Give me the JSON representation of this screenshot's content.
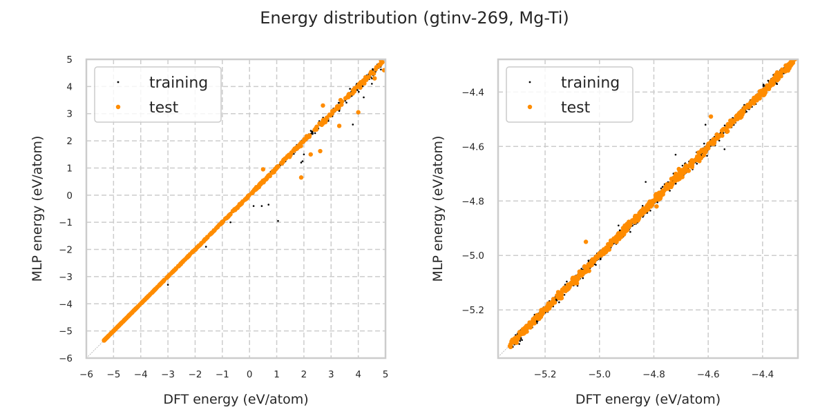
{
  "figure": {
    "title": "Energy distribution (gtinv-269, Mg-Ti)"
  },
  "colors": {
    "training": "#000000",
    "test": "#ff8c00",
    "grid": "#cccccc",
    "spine": "#cccccc",
    "diagonal": "#aaaaaa"
  },
  "chart_data": [
    {
      "type": "scatter",
      "title": "",
      "xlabel": "DFT energy (eV/atom)",
      "ylabel": "MLP energy (eV/atom)",
      "xlim": [
        -6,
        5
      ],
      "ylim": [
        -6,
        5
      ],
      "xticks": [
        -6,
        -5,
        -4,
        -3,
        -2,
        -1,
        0,
        1,
        2,
        3,
        4,
        5
      ],
      "yticks": [
        -6,
        -5,
        -4,
        -3,
        -2,
        -1,
        0,
        1,
        2,
        3,
        4,
        5
      ],
      "xtick_labels": [
        "−6",
        "−5",
        "−4",
        "−3",
        "−2",
        "−1",
        "0",
        "1",
        "2",
        "3",
        "4",
        "5"
      ],
      "ytick_labels": [
        "−6",
        "−5",
        "−4",
        "−3",
        "−2",
        "−1",
        "0",
        "1",
        "2",
        "3",
        "4",
        "5"
      ],
      "grid": true,
      "legend": {
        "position": "top-left",
        "entries": [
          "training",
          "test"
        ]
      },
      "diagonal": true,
      "series": [
        {
          "name": "training",
          "distribution": {
            "range": [
              -5.35,
              4.9
            ],
            "scatter_sd": 0.08,
            "count": 900
          },
          "outliers": [
            [
              1.05,
              -0.95
            ],
            [
              0.45,
              -0.4
            ],
            [
              0.15,
              -0.4
            ],
            [
              0.7,
              -0.35
            ],
            [
              1.9,
              1.2
            ],
            [
              2.0,
              1.5
            ],
            [
              1.95,
              1.25
            ],
            [
              3.3,
              3.1
            ],
            [
              4.2,
              3.6
            ],
            [
              4.5,
              4.1
            ],
            [
              3.8,
              2.6
            ],
            [
              -1.6,
              -1.9
            ],
            [
              -3.0,
              -3.3
            ],
            [
              -0.7,
              -1.0
            ]
          ]
        },
        {
          "name": "test",
          "distribution": {
            "range": [
              -5.35,
              4.9
            ],
            "scatter_sd": 0.05,
            "count": 500
          },
          "outliers": [
            [
              1.9,
              0.65
            ],
            [
              2.25,
              1.5
            ],
            [
              2.6,
              1.62
            ],
            [
              2.7,
              3.3
            ],
            [
              3.3,
              2.55
            ],
            [
              4.0,
              3.05
            ],
            [
              4.0,
              4.0
            ],
            [
              4.6,
              4.3
            ],
            [
              4.95,
              4.6
            ],
            [
              0.5,
              0.95
            ],
            [
              3.35,
              3.5
            ]
          ]
        }
      ]
    },
    {
      "type": "scatter",
      "title": "",
      "xlabel": "DFT energy (eV/atom)",
      "ylabel": "MLP energy (eV/atom)",
      "xlim": [
        -5.373,
        -4.27
      ],
      "ylim": [
        -5.377,
        -4.28
      ],
      "xticks": [
        -5.2,
        -5.0,
        -4.8,
        -4.6,
        -4.4
      ],
      "yticks": [
        -5.2,
        -5.0,
        -4.8,
        -4.6,
        -4.4
      ],
      "xtick_labels": [
        "−5.2",
        "−5.0",
        "−4.8",
        "−4.6",
        "−4.4"
      ],
      "ytick_labels": [
        "−5.2",
        "−5.0",
        "−4.8",
        "−4.6",
        "−4.4"
      ],
      "grid": true,
      "legend": {
        "position": "top-left",
        "entries": [
          "training",
          "test"
        ]
      },
      "diagonal": true,
      "series": [
        {
          "name": "training",
          "distribution": {
            "range": [
              -5.33,
              -4.28
            ],
            "scatter_sd": 0.009,
            "count": 1100
          },
          "outliers": [
            [
              -4.61,
              -4.52
            ],
            [
              -4.72,
              -4.63
            ],
            [
              -4.83,
              -4.73
            ],
            [
              -4.54,
              -4.61
            ],
            [
              -4.93,
              -4.89
            ]
          ]
        },
        {
          "name": "test",
          "distribution": {
            "range": [
              -5.33,
              -4.28
            ],
            "scatter_sd": 0.007,
            "count": 700
          },
          "outliers": [
            [
              -4.59,
              -4.49
            ],
            [
              -4.79,
              -4.82
            ],
            [
              -5.05,
              -4.95
            ]
          ]
        }
      ]
    }
  ]
}
